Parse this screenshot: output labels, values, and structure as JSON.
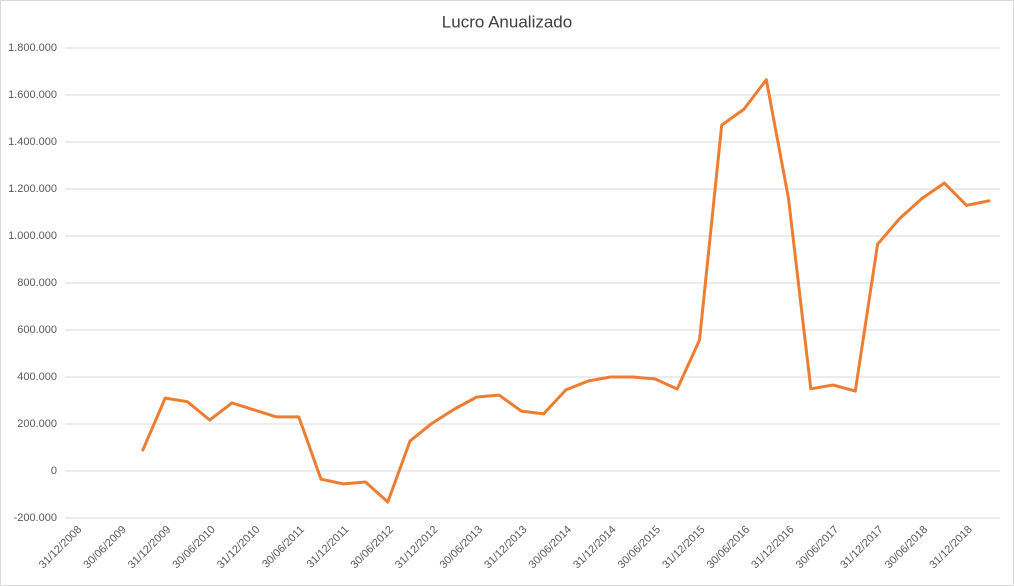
{
  "chart_data": {
    "type": "line",
    "title": "Lucro Anualizado",
    "categories": [
      "31/12/2008",
      null,
      "30/06/2009",
      null,
      "31/12/2009",
      null,
      "30/06/2010",
      null,
      "31/12/2010",
      null,
      "30/06/2011",
      null,
      "31/12/2011",
      null,
      "30/06/2012",
      null,
      "31/12/2012",
      null,
      "30/06/2013",
      null,
      "31/12/2013",
      null,
      "30/06/2014",
      null,
      "31/12/2014",
      null,
      "30/06/2015",
      null,
      "31/12/2015",
      null,
      "30/06/2016",
      null,
      "31/12/2016",
      null,
      "30/06/2017",
      null,
      "31/12/2017",
      null,
      "30/06/2018",
      null,
      "31/12/2018",
      null
    ],
    "series": [
      {
        "name": "Lucro Anualizado",
        "color": "#ed7d31",
        "values": [
          null,
          null,
          null,
          90000,
          310000,
          295000,
          217000,
          290000,
          260000,
          230000,
          230000,
          -35000,
          -55000,
          -47000,
          -132000,
          128000,
          204000,
          264000,
          315000,
          323000,
          255000,
          243000,
          345000,
          383000,
          400000,
          400000,
          392000,
          349000,
          557000,
          1472000,
          1540000,
          1665000,
          1160000,
          350000,
          366000,
          340000,
          965000,
          1075000,
          1160000,
          1225000,
          1130000,
          1150000
        ]
      }
    ],
    "ylim": [
      -200000,
      1800000
    ],
    "yticks": [
      {
        "value": -200000,
        "label": "-200.000"
      },
      0,
      {
        "value": 200000,
        "label": "200.000"
      },
      {
        "value": 400000,
        "label": "400.000"
      },
      {
        "value": 600000,
        "label": "600.000"
      },
      {
        "value": 800000,
        "label": "800.000"
      },
      {
        "value": 1000000,
        "label": "1.000.000"
      },
      {
        "value": 1200000,
        "label": "1.200.000"
      },
      {
        "value": 1400000,
        "label": "1.400.000"
      },
      {
        "value": 1600000,
        "label": "1.600.000"
      },
      {
        "value": 1800000,
        "label": "1.800.000"
      }
    ],
    "grid": true
  }
}
